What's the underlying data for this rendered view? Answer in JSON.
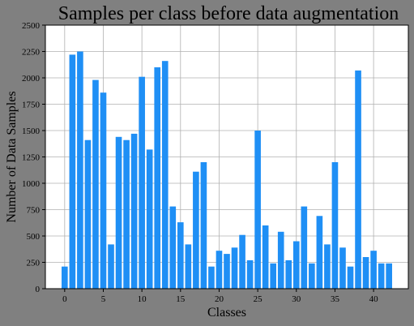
{
  "chart_data": {
    "type": "bar",
    "title": "Samples per class before data augmentation",
    "xlabel": "Classes",
    "ylabel": "Number of Data Samples",
    "x": [
      0,
      1,
      2,
      3,
      4,
      5,
      6,
      7,
      8,
      9,
      10,
      11,
      12,
      13,
      14,
      15,
      16,
      17,
      18,
      19,
      20,
      21,
      22,
      23,
      24,
      25,
      26,
      27,
      28,
      29,
      30,
      31,
      32,
      33,
      34,
      35,
      36,
      37,
      38,
      39,
      40,
      41,
      42
    ],
    "values": [
      210,
      2220,
      2250,
      1410,
      1980,
      1860,
      420,
      1440,
      1410,
      1470,
      2010,
      1320,
      2100,
      2160,
      780,
      630,
      420,
      1110,
      1200,
      210,
      360,
      330,
      390,
      510,
      270,
      1500,
      600,
      240,
      540,
      270,
      450,
      780,
      240,
      690,
      420,
      1200,
      390,
      210,
      2070,
      300,
      360,
      240,
      240
    ],
    "xlim": [
      -2.5,
      44.5
    ],
    "ylim": [
      0,
      2500
    ],
    "xticks": [
      0,
      5,
      10,
      15,
      20,
      25,
      30,
      35,
      40
    ],
    "yticks": [
      0,
      250,
      500,
      750,
      1000,
      1250,
      1500,
      1750,
      2000,
      2250,
      2500
    ],
    "bar_color": "#1f8ff5",
    "background_color": "#808080",
    "plot_background_color": "#ffffff",
    "grid": true
  }
}
